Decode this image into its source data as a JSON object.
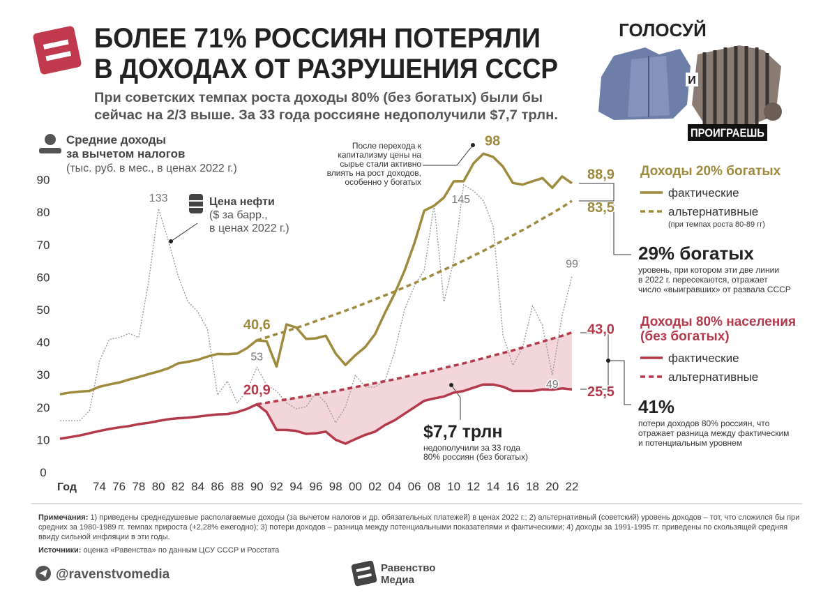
{
  "chart_data": {
    "type": "line",
    "title": [
      "БОЛЕЕ 71% РОССИЯН ПОТЕРЯЛИ",
      "В ДОХОДАХ ОТ РАЗРУШЕНИЯ СССР"
    ],
    "subtitle": [
      "При советских темпах роста доходы 80% (без богатых) были бы",
      "сейчас на 2/3 выше. За 33 года россияне недополучили $7,7 трлн."
    ],
    "y_label": [
      "Средние доходы",
      "за вычетом налогов",
      "(тыс. руб. в мес., в ценах 2022 г.)"
    ],
    "y2_label": [
      "($ за барр.,",
      "в ценах 2022 г.)"
    ],
    "x_label": "Год",
    "x": [
      1970,
      1971,
      1972,
      1973,
      1974,
      1975,
      1976,
      1977,
      1978,
      1979,
      1980,
      1981,
      1982,
      1983,
      1984,
      1985,
      1986,
      1987,
      1988,
      1989,
      1990,
      1991,
      1992,
      1993,
      1994,
      1995,
      1996,
      1997,
      1998,
      1999,
      2000,
      2001,
      2002,
      2003,
      2004,
      2005,
      2006,
      2007,
      2008,
      2009,
      2010,
      2011,
      2012,
      2013,
      2014,
      2015,
      2016,
      2017,
      2018,
      2019,
      2020,
      2021,
      2022
    ],
    "xlim": [
      1970,
      2022
    ],
    "xticks": [
      {
        "value": 1974,
        "label": "74"
      },
      {
        "value": 1976,
        "label": "76"
      },
      {
        "value": 1978,
        "label": "78"
      },
      {
        "value": 1980,
        "label": "80"
      },
      {
        "value": 1982,
        "label": "82"
      },
      {
        "value": 1984,
        "label": "84"
      },
      {
        "value": 1986,
        "label": "86"
      },
      {
        "value": 1988,
        "label": "88"
      },
      {
        "value": 1990,
        "label": "90"
      },
      {
        "value": 1992,
        "label": "92"
      },
      {
        "value": 1994,
        "label": "94"
      },
      {
        "value": 1996,
        "label": "96"
      },
      {
        "value": 1998,
        "label": "98"
      },
      {
        "value": 2000,
        "label": "00"
      },
      {
        "value": 2002,
        "label": "02"
      },
      {
        "value": 2004,
        "label": "04"
      },
      {
        "value": 2006,
        "label": "06"
      },
      {
        "value": 2008,
        "label": "08"
      },
      {
        "value": 2010,
        "label": "10"
      },
      {
        "value": 2012,
        "label": "12"
      },
      {
        "value": 2014,
        "label": "14"
      },
      {
        "value": 2016,
        "label": "16"
      },
      {
        "value": 2018,
        "label": "18"
      },
      {
        "value": 2020,
        "label": "20"
      },
      {
        "value": 2022,
        "label": "22"
      }
    ],
    "ylim": [
      0,
      100
    ],
    "yticks": [
      0,
      10,
      20,
      30,
      40,
      50,
      60,
      70,
      80,
      90
    ],
    "y2lim": [
      0,
      164
    ],
    "grid": false,
    "legend_groups": [
      {
        "title": [
          "Доходы 20% богатых"
        ],
        "note": "(при темпах роста 80-89 гг)"
      },
      {
        "title": [
          "Доходы 80% населения",
          "(без богатых)"
        ]
      }
    ],
    "series": [
      {
        "name": "фактические",
        "color": "#9e8a3c",
        "dashed": false,
        "values": [
          24.0,
          24.5,
          24.8,
          25.0,
          26.3,
          27.0,
          27.6,
          28.5,
          29.3,
          30.2,
          31.0,
          32.0,
          33.5,
          34.0,
          34.6,
          35.6,
          36.4,
          36.3,
          36.5,
          38.2,
          40.6,
          40.3,
          32.5,
          45.5,
          44.5,
          41.0,
          41.2,
          42.0,
          36.5,
          33.0,
          36.0,
          38.5,
          42.5,
          49.0,
          55.0,
          62.0,
          70.5,
          80.5,
          82.0,
          84.5,
          89.5,
          89.5,
          95.0,
          98.0,
          97.0,
          94.0,
          89.0,
          88.5,
          89.5,
          90.5,
          87.5,
          91.0,
          88.9
        ],
        "value_labels": {
          "20": "40,6",
          "43": "98",
          "52": "88,9"
        }
      },
      {
        "name": "альтернативные",
        "color": "#9e8a3c",
        "dashed": true,
        "values": [
          null,
          null,
          null,
          null,
          null,
          null,
          null,
          null,
          null,
          null,
          null,
          null,
          null,
          null,
          null,
          null,
          null,
          null,
          null,
          null,
          40.6,
          41.5,
          42.5,
          43.4,
          44.4,
          45.4,
          46.5,
          47.5,
          48.6,
          49.7,
          50.8,
          52.0,
          53.2,
          54.4,
          55.6,
          56.9,
          58.2,
          59.5,
          60.9,
          62.3,
          63.7,
          65.1,
          66.6,
          68.1,
          69.7,
          71.3,
          72.9,
          74.5,
          76.2,
          78.0,
          79.7,
          81.5,
          83.5
        ],
        "value_labels": {
          "52": "83,5"
        }
      },
      {
        "name": "фактические",
        "color": "#b3394b",
        "dashed": false,
        "values": [
          10.3,
          10.8,
          11.3,
          12.0,
          12.7,
          13.3,
          13.8,
          14.2,
          14.8,
          15.2,
          15.8,
          16.3,
          16.6,
          16.8,
          17.1,
          17.5,
          17.8,
          17.9,
          18.5,
          19.5,
          20.9,
          18.5,
          13.0,
          13.0,
          12.7,
          11.8,
          12.0,
          12.5,
          10.0,
          8.8,
          10.2,
          11.5,
          12.5,
          14.5,
          16.0,
          18.0,
          20.0,
          22.0,
          22.7,
          23.3,
          24.5,
          25.0,
          26.0,
          27.0,
          27.0,
          26.3,
          25.0,
          25.0,
          25.0,
          25.5,
          25.4,
          25.8,
          25.5
        ],
        "value_labels": {
          "20": "20,9",
          "52": "25,5"
        }
      },
      {
        "name": "альтернативные",
        "color": "#b3394b",
        "dashed": true,
        "values": [
          null,
          null,
          null,
          null,
          null,
          null,
          null,
          null,
          null,
          null,
          null,
          null,
          null,
          null,
          null,
          null,
          null,
          null,
          null,
          null,
          20.9,
          21.4,
          21.9,
          22.4,
          22.9,
          23.4,
          23.9,
          24.5,
          25.0,
          25.6,
          26.2,
          26.8,
          27.4,
          28.0,
          28.6,
          29.3,
          30.0,
          30.6,
          31.3,
          32.1,
          32.8,
          33.5,
          34.3,
          35.1,
          35.9,
          36.7,
          37.5,
          38.4,
          39.3,
          40.2,
          41.1,
          42.0,
          43.0
        ],
        "value_labels": {
          "52": "43,0"
        }
      },
      {
        "name": "Цена нефти",
        "color": "#9a9a9a",
        "axis": "y2",
        "values": [
          26,
          26,
          26,
          31,
          56,
          67,
          68,
          70,
          68,
          96,
          133,
          117,
          99,
          86,
          81,
          72,
          39,
          46,
          35,
          41,
          53,
          44,
          41,
          35,
          32,
          33,
          40,
          35,
          25,
          33,
          49,
          43,
          43,
          46,
          61,
          82,
          94,
          102,
          135,
          86,
          107,
          145,
          142,
          137,
          124,
          69,
          54,
          63,
          84,
          74,
          49,
          79,
          99
        ]
      }
    ],
    "fill_color": "#f3d6da",
    "annotations": [
      {
        "lines": [
          "После перехода к",
          "капитализму цены на",
          "сырье стали активно",
          "влиять на рост доходов,",
          "особенно у богатых"
        ]
      },
      {
        "head": "$7,7 трлн",
        "lines": [
          "недополучили за 33 года",
          "80% россиян (без богатых)"
        ]
      },
      {
        "head": "29% богатых",
        "lines": [
          "уровень, при котором эти две линии",
          "в 2022 г. пересекаются, отражает",
          "число «выигравших» от развала СССР"
        ]
      },
      {
        "head": "41%",
        "lines": [
          "потери доходов 80% россиян, что",
          "отражает разница между фактическим",
          "и потенциальным уровнем"
        ]
      }
    ]
  },
  "poster": {
    "top": "ГОЛОСУЙ",
    "middle": "И",
    "bottom": "ПРОИГРАЕШЬ"
  },
  "notes": {
    "label": "Примечания:",
    "text": "1) приведены среднедушевые располагаемые доходы (за вычетом налогов и др. обязательных платежей) в ценах 2022 г.; 2) альтернативный (советский) уровень доходов – тот, что сложился бы при средних за 1980-1989 гг. темпах прироста (+2,28% ежегодно); 3) потери доходов – разница между потенциальными показателями и фактическими; 4)  доходы за 1991-1995 гг. приведены по скользящей средняя ввиду сильной инфляции в эти годы."
  },
  "sources": {
    "label": "Источники:",
    "text": "оценка «Равенства» по данным ЦСУ СССР и Росстата"
  },
  "footer": {
    "handle": "@ravenstvomedia",
    "brand": [
      "Равенство",
      "Медиа"
    ]
  }
}
